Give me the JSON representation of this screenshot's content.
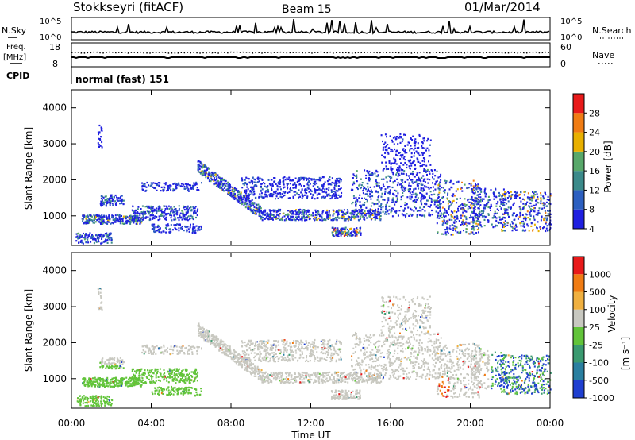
{
  "header": {
    "station": "Stokkseyri (fitACF)",
    "beam": "Beam 15",
    "date": "01/Mar/2014"
  },
  "nsky_panel": {
    "left_label": "N.Sky",
    "right_label": "N.Search",
    "left_ticks": [
      "10^5",
      "10^0"
    ],
    "right_ticks": [
      "10^5",
      "10^0"
    ]
  },
  "freq_panel": {
    "left_label_1": "Freq.",
    "left_label_2": "[MHz]",
    "left_ticks": [
      "18",
      "8"
    ],
    "right_label": "Nave",
    "right_ticks": [
      "60",
      "0"
    ],
    "cpid_label": "CPID",
    "cpid_text": "normal (fast) 151"
  },
  "chart_data": [
    {
      "type": "heatmap",
      "name": "power",
      "ylabel": "Slant Range [km]",
      "ylim": [
        180,
        4500
      ],
      "yticks": [
        "1000",
        "2000",
        "3000",
        "4000"
      ],
      "xlim": [
        "00:00",
        "24:00"
      ],
      "colorbar_label": "Power [dB]",
      "colorbar_ticks": [
        "28",
        "24",
        "20",
        "16",
        "12",
        "8",
        "4"
      ],
      "colors": [
        "#1f1fe0",
        "#2c5fc0",
        "#3b8a8a",
        "#58a86a",
        "#e8b000",
        "#f07c14",
        "#e81a1a"
      ]
    },
    {
      "type": "heatmap",
      "name": "velocity",
      "ylabel": "Slant Range [km]",
      "ylim": [
        180,
        4500
      ],
      "yticks": [
        "1000",
        "2000",
        "3000",
        "4000"
      ],
      "xlim": [
        "00:00",
        "24:00"
      ],
      "colorbar_label": "Velocity",
      "colorbar_unit": "[m s⁻¹]",
      "colorbar_ticks": [
        "1000",
        "500",
        "100",
        "25",
        "-25",
        "-100",
        "-500",
        "-1000"
      ],
      "colors": [
        "#1f3fd0",
        "#2a7fa0",
        "#3a9a70",
        "#62c43a",
        "#c8c8c0",
        "#f0b040",
        "#f07c14",
        "#e81a1a"
      ]
    }
  ],
  "x_axis": {
    "ticks": [
      "00:00",
      "04:00",
      "08:00",
      "12:00",
      "16:00",
      "20:00",
      "00:00"
    ],
    "label": "Time UT"
  }
}
